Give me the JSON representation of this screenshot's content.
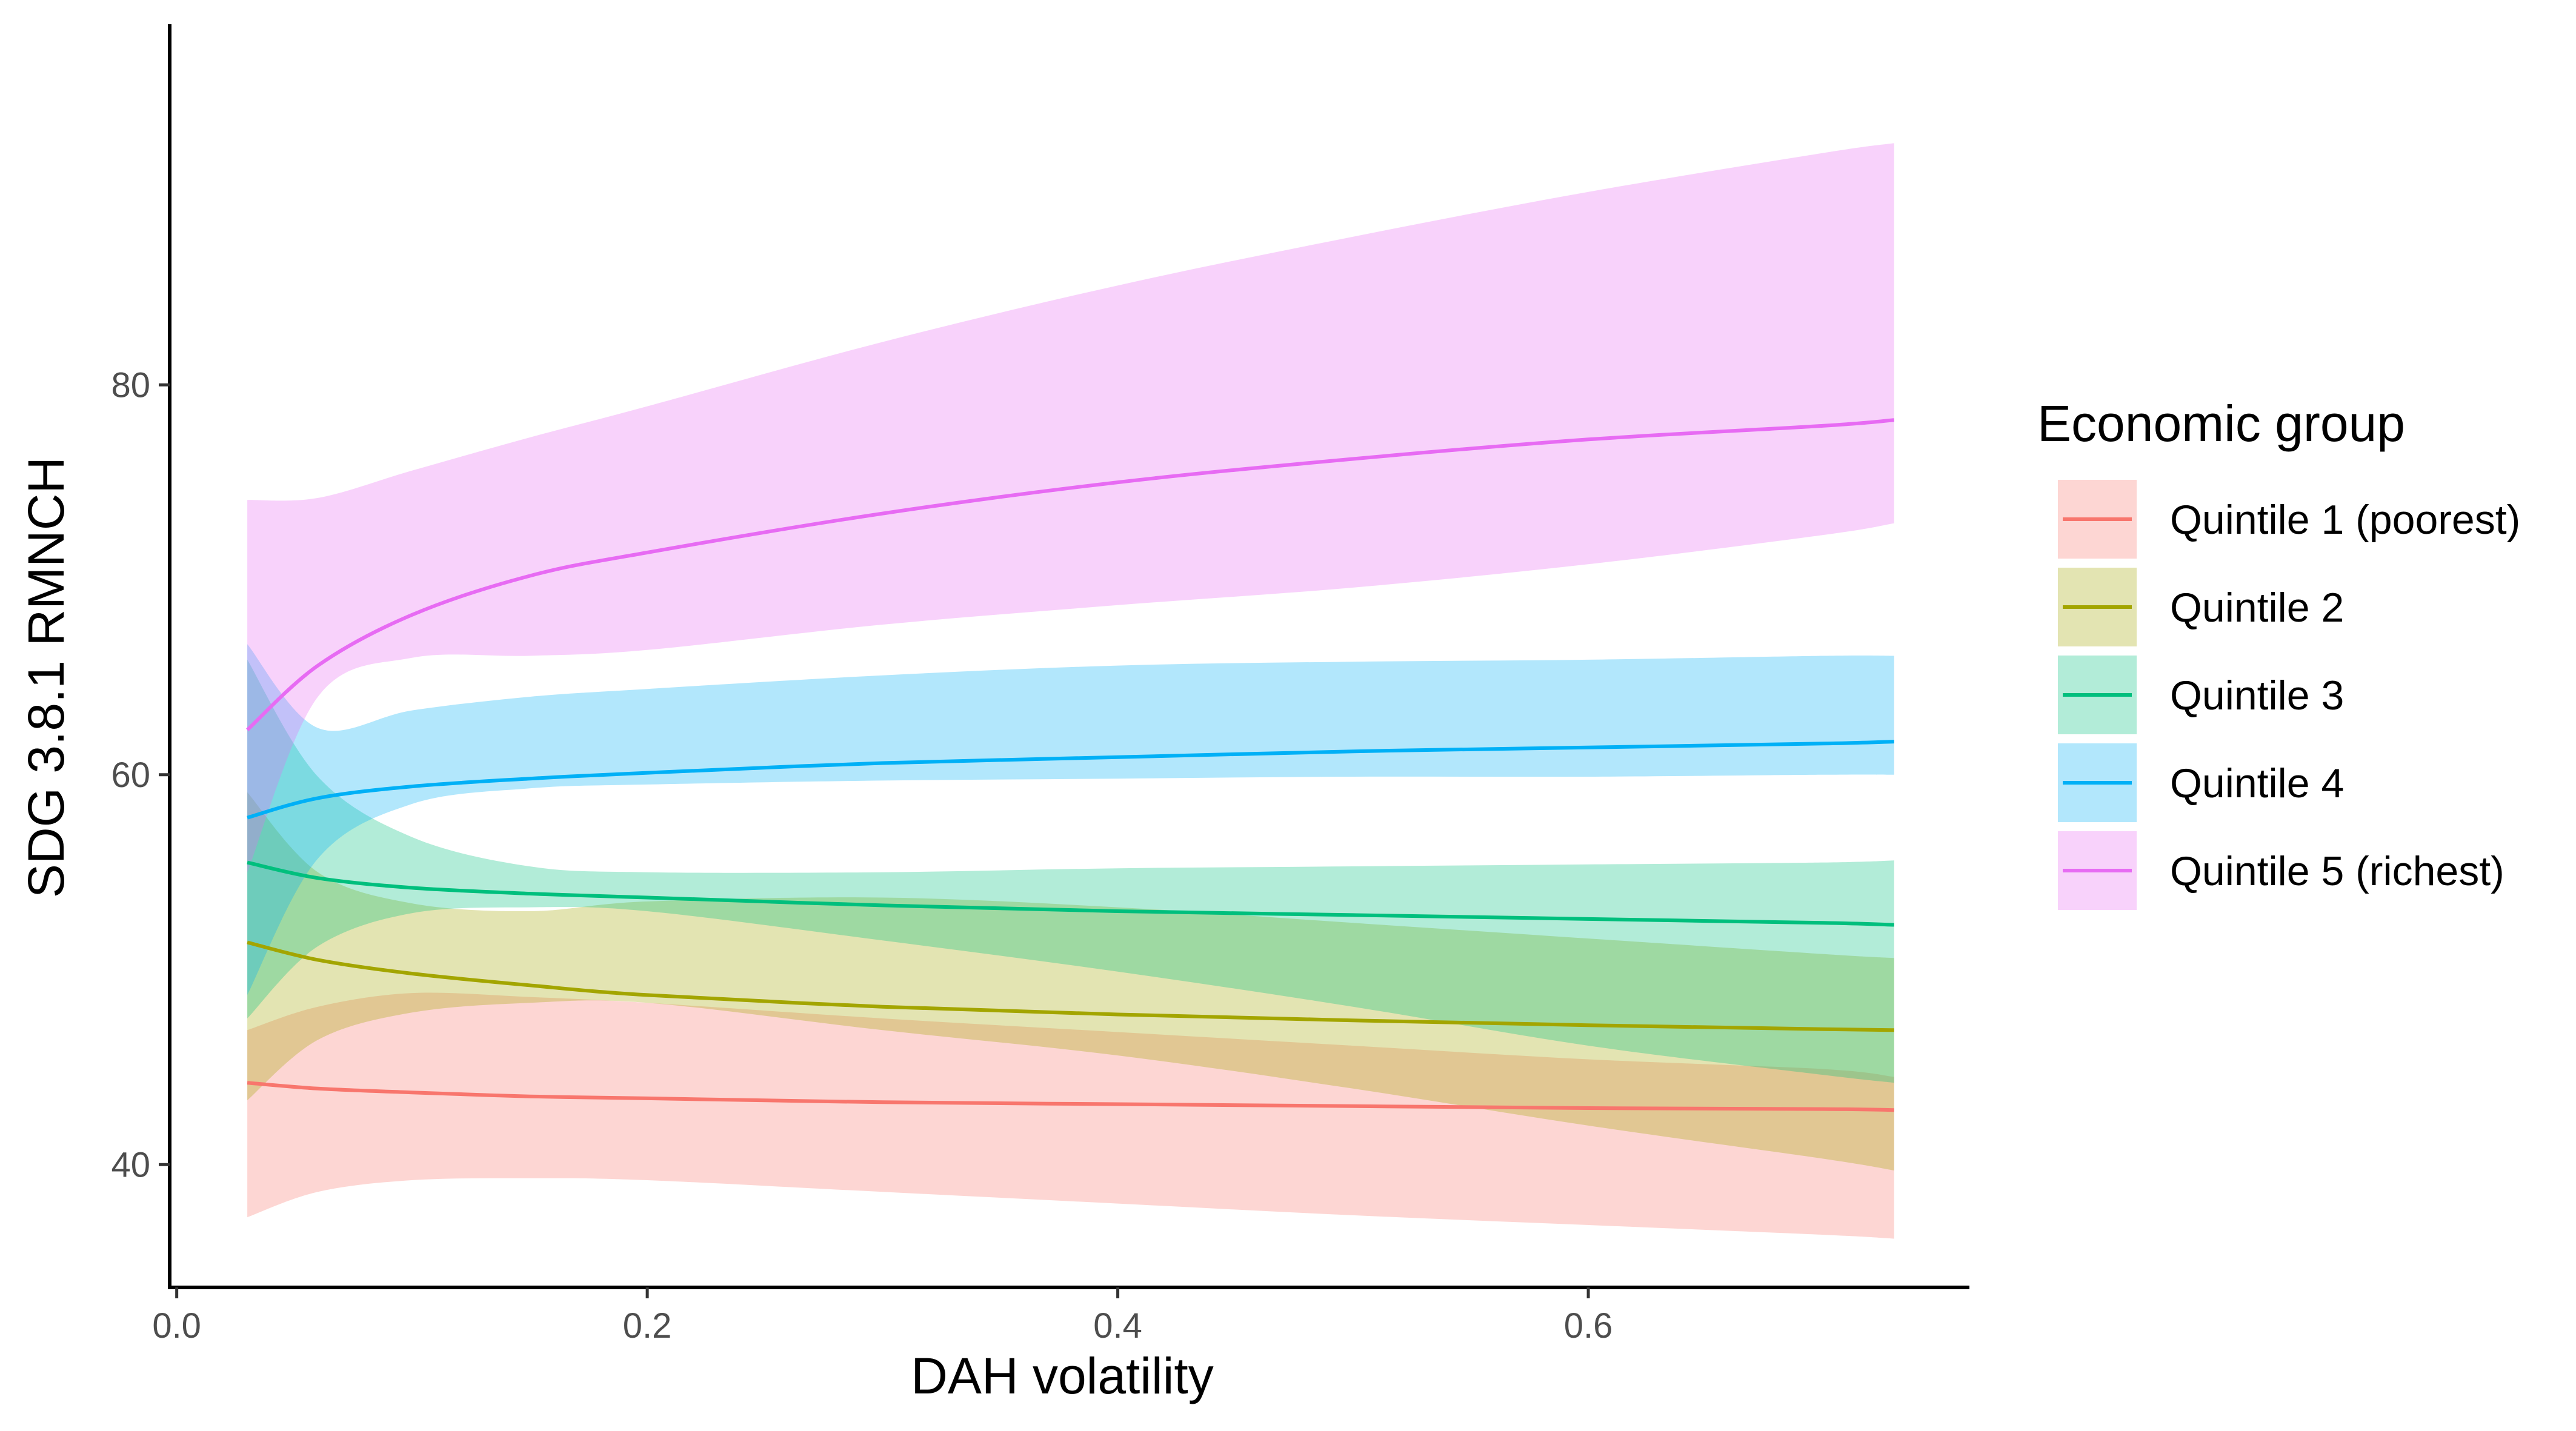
{
  "chart_data": {
    "type": "line",
    "xlabel": "DAH volatility",
    "ylabel": "SDG 3.8.1 RMNCH",
    "xlim": [
      -0.003,
      0.762
    ],
    "ylim": [
      33.7,
      98.5
    ],
    "x_ticks": [
      {
        "value": 0.0,
        "label": "0.0"
      },
      {
        "value": 0.2,
        "label": "0.2"
      },
      {
        "value": 0.4,
        "label": "0.4"
      },
      {
        "value": 0.6,
        "label": "0.6"
      }
    ],
    "y_ticks": [
      {
        "value": 40,
        "label": "40"
      },
      {
        "value": 60,
        "label": "60"
      },
      {
        "value": 80,
        "label": "80"
      }
    ],
    "grid": false,
    "legend": {
      "title": "Economic group",
      "placement": "right"
    },
    "x": [
      0.03,
      0.06,
      0.1,
      0.15,
      0.2,
      0.3,
      0.4,
      0.5,
      0.6,
      0.7,
      0.73
    ],
    "series": [
      {
        "name": "Quintile 1 (poorest)",
        "color": "#F8766D",
        "values": [
          44.2,
          43.9,
          43.7,
          43.5,
          43.4,
          43.2,
          43.1,
          43.0,
          42.9,
          42.85,
          42.8
        ],
        "lower": [
          37.3,
          38.6,
          39.2,
          39.3,
          39.2,
          38.6,
          38.0,
          37.4,
          36.9,
          36.4,
          36.2
        ],
        "upper": [
          46.9,
          48.1,
          48.8,
          48.6,
          48.3,
          47.5,
          46.8,
          46.1,
          45.4,
          44.9,
          44.5
        ]
      },
      {
        "name": "Quintile 2",
        "color": "#A3A500",
        "values": [
          51.4,
          50.5,
          49.8,
          49.2,
          48.7,
          48.1,
          47.7,
          47.4,
          47.15,
          46.95,
          46.9
        ],
        "lower": [
          43.3,
          46.4,
          47.8,
          48.3,
          48.3,
          46.9,
          45.6,
          43.9,
          42.0,
          40.3,
          39.7
        ],
        "upper": [
          59.1,
          55.0,
          53.4,
          53.0,
          53.5,
          53.7,
          53.2,
          52.4,
          51.6,
          50.8,
          50.6
        ]
      },
      {
        "name": "Quintile 3",
        "color": "#00BF7D",
        "values": [
          55.5,
          54.7,
          54.2,
          53.9,
          53.7,
          53.3,
          53.0,
          52.8,
          52.6,
          52.4,
          52.3
        ],
        "lower": [
          47.5,
          51.2,
          52.9,
          53.2,
          53.0,
          51.5,
          49.9,
          48.1,
          46.1,
          44.6,
          44.2
        ],
        "upper": [
          65.9,
          59.9,
          56.8,
          55.3,
          55.0,
          55.0,
          55.2,
          55.3,
          55.4,
          55.5,
          55.6
        ]
      },
      {
        "name": "Quintile 4",
        "color": "#00B0F6",
        "values": [
          57.8,
          58.8,
          59.4,
          59.8,
          60.1,
          60.6,
          60.9,
          61.2,
          61.4,
          61.6,
          61.7
        ],
        "lower": [
          48.7,
          55.7,
          58.5,
          59.3,
          59.5,
          59.7,
          59.8,
          59.9,
          59.9,
          60.0,
          60.0
        ],
        "upper": [
          66.7,
          62.4,
          63.3,
          64.0,
          64.4,
          65.1,
          65.6,
          65.8,
          65.9,
          66.1,
          66.1
        ]
      },
      {
        "name": "Quintile 5 (richest)",
        "color": "#E76BF3",
        "values": [
          62.3,
          65.6,
          68.2,
          70.2,
          71.4,
          73.4,
          75.0,
          76.2,
          77.2,
          77.9,
          78.2
        ],
        "lower": [
          55.0,
          64.0,
          66.0,
          66.1,
          66.4,
          67.7,
          68.7,
          69.6,
          70.8,
          72.3,
          72.9
        ],
        "upper": [
          74.1,
          74.2,
          75.6,
          77.3,
          78.9,
          82.2,
          85.1,
          87.6,
          89.9,
          91.9,
          92.4
        ]
      }
    ]
  }
}
